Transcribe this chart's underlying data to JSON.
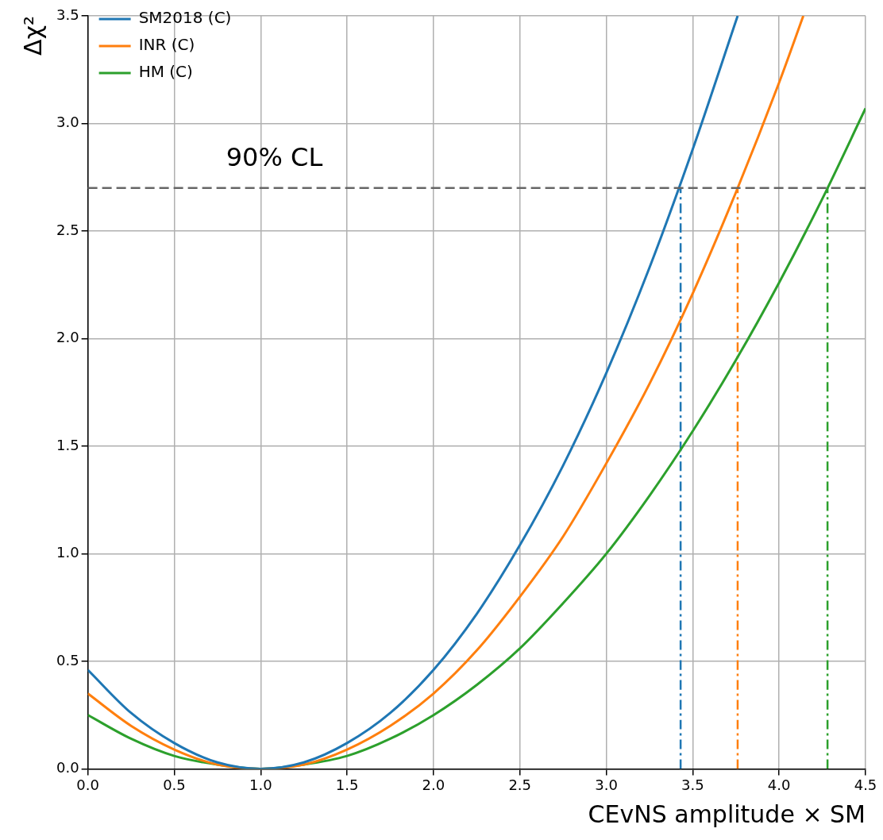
{
  "chart_data": {
    "type": "line",
    "xlabel": "CEvNS amplitude × SM",
    "ylabel": "Δχ²",
    "xlim": [
      0,
      4.5
    ],
    "xticks": [
      {
        "value": 0,
        "label": "0.0"
      },
      0.5,
      {
        "value": 1,
        "label": "1.0"
      },
      1.5,
      {
        "value": 2,
        "label": "2.0"
      },
      2.5,
      {
        "value": 3,
        "label": "3.0"
      },
      3.5,
      {
        "value": 4,
        "label": "4.0"
      },
      4.5
    ],
    "ylim": [
      0,
      3.5
    ],
    "yticks": [
      {
        "value": 0,
        "label": "0.0"
      },
      0.5,
      {
        "value": 1,
        "label": "1.0"
      },
      1.5,
      {
        "value": 2,
        "label": "2.0"
      },
      2.5,
      {
        "value": 3,
        "label": "3.0"
      },
      3.5
    ],
    "grid": true,
    "legend": "top left",
    "marker": "none",
    "ref_lines": [
      {
        "axis": "y",
        "value": 2.7,
        "label": "90% CL",
        "color": "#666666",
        "line_style": "dashed"
      }
    ],
    "series": [
      {
        "name": "SM2018 (C)",
        "color": "#1f77b4",
        "x": [
          0,
          0.25,
          0.5,
          0.75,
          1,
          1.25,
          1.5,
          1.75,
          2,
          2.25,
          2.5,
          2.75,
          3,
          3.25,
          3.5,
          3.76
        ],
        "values": [
          0.46,
          0.26,
          0.12,
          0.03,
          0,
          0.03,
          0.12,
          0.26,
          0.46,
          0.72,
          1.04,
          1.41,
          1.84,
          2.33,
          2.88,
          3.5
        ]
      },
      {
        "name": "INR (C)",
        "color": "#ff7f0e",
        "x": [
          0,
          0.25,
          0.5,
          0.75,
          1,
          1.25,
          1.5,
          1.75,
          2,
          2.25,
          2.5,
          2.75,
          3,
          3.25,
          3.5,
          3.75,
          4,
          4.14
        ],
        "values": [
          0.35,
          0.2,
          0.09,
          0.02,
          0,
          0.02,
          0.09,
          0.2,
          0.35,
          0.55,
          0.8,
          1.08,
          1.42,
          1.79,
          2.21,
          2.68,
          3.19,
          3.5
        ]
      },
      {
        "name": "HM (C)",
        "color": "#2ca02c",
        "x": [
          0,
          0.25,
          0.5,
          0.75,
          1,
          1.25,
          1.5,
          1.75,
          2,
          2.25,
          2.5,
          2.75,
          3,
          3.25,
          3.5,
          3.75,
          4,
          4.25,
          4.5
        ],
        "values": [
          0.25,
          0.14,
          0.06,
          0.02,
          0,
          0.02,
          0.06,
          0.14,
          0.25,
          0.39,
          0.56,
          0.77,
          1.0,
          1.27,
          1.57,
          1.9,
          2.26,
          2.65,
          3.07
        ]
      },
      {
        "color": "#1f77b4",
        "line_style": "dashed",
        "x": [
          3.43,
          3.43
        ],
        "values": [
          0,
          2.7
        ]
      },
      {
        "color": "#ff7f0e",
        "line_style": "dashed",
        "x": [
          3.76,
          3.76
        ],
        "values": [
          0,
          2.7
        ]
      },
      {
        "color": "#2ca02c",
        "line_style": "dashed",
        "x": [
          4.28,
          4.28
        ],
        "values": [
          0,
          2.7
        ]
      }
    ]
  }
}
